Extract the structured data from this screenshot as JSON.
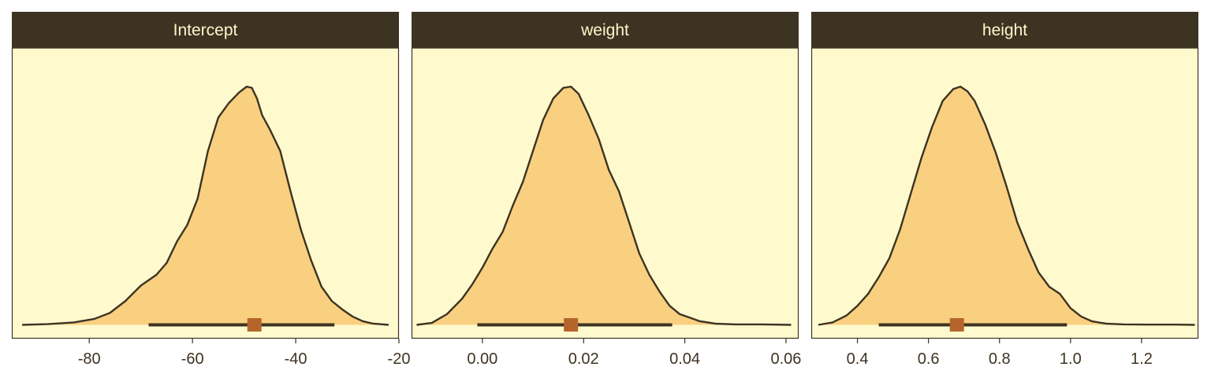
{
  "colors": {
    "strip_fill": "#3d3322",
    "strip_text": "#fdf7cc",
    "panel_bg": "#fffacd",
    "density_fill": "#f9d080",
    "density_line": "#3d3322",
    "interval_line": "#3d3322",
    "point_estimate": "#b5652c",
    "tick_text": "#3d3322"
  },
  "chart_data": [
    {
      "type": "area",
      "facet": "Intercept",
      "xlim": [
        -95,
        -20
      ],
      "x_ticks": [
        -80,
        -60,
        -40,
        -20
      ],
      "x_tick_labels": [
        "-80",
        "-60",
        "-40",
        "-20"
      ],
      "density": {
        "x": [
          -93.0,
          -88.0,
          -83.0,
          -79.0,
          -76.0,
          -73.0,
          -70.0,
          -67.0,
          -65.0,
          -63.0,
          -61.0,
          -59.0,
          -57.0,
          -55.0,
          -53.0,
          -51.0,
          -49.5,
          -48.5,
          -47.5,
          -46.5,
          -45.0,
          -43.0,
          -41.0,
          -39.0,
          -37.0,
          -35.0,
          -33.0,
          -31.0,
          -29.0,
          -27.0,
          -25.0,
          -22.0
        ],
        "y": [
          0.0,
          0.003,
          0.01,
          0.025,
          0.05,
          0.1,
          0.165,
          0.21,
          0.26,
          0.35,
          0.42,
          0.53,
          0.73,
          0.87,
          0.93,
          0.975,
          1.0,
          0.995,
          0.95,
          0.88,
          0.82,
          0.73,
          0.56,
          0.4,
          0.27,
          0.16,
          0.1,
          0.065,
          0.035,
          0.015,
          0.005,
          0.0
        ]
      },
      "interval": [
        -68.5,
        -32.5
      ],
      "point_estimate": -48.0
    },
    {
      "type": "area",
      "facet": "weight",
      "xlim": [
        -0.014,
        0.0625
      ],
      "x_ticks": [
        0.0,
        0.02,
        0.04,
        0.06
      ],
      "x_tick_labels": [
        "0.00",
        "0.02",
        "0.04",
        "0.06"
      ],
      "density": {
        "x": [
          -0.013,
          -0.01,
          -0.007,
          -0.004,
          -0.002,
          0.0,
          0.002,
          0.004,
          0.006,
          0.008,
          0.01,
          0.012,
          0.014,
          0.016,
          0.0175,
          0.019,
          0.021,
          0.023,
          0.025,
          0.027,
          0.029,
          0.031,
          0.033,
          0.035,
          0.037,
          0.039,
          0.041,
          0.043,
          0.046,
          0.05,
          0.055,
          0.061
        ],
        "y": [
          0.0,
          0.008,
          0.045,
          0.11,
          0.17,
          0.24,
          0.32,
          0.39,
          0.5,
          0.6,
          0.73,
          0.86,
          0.95,
          0.995,
          1.0,
          0.97,
          0.88,
          0.78,
          0.65,
          0.56,
          0.43,
          0.3,
          0.21,
          0.14,
          0.08,
          0.045,
          0.03,
          0.015,
          0.005,
          0.002,
          0.002,
          0.0
        ]
      },
      "interval": [
        -0.001,
        0.0375
      ],
      "point_estimate": 0.0175
    },
    {
      "type": "area",
      "facet": "height",
      "xlim": [
        0.27,
        1.36
      ],
      "x_ticks": [
        0.4,
        0.6,
        0.8,
        1.0,
        1.2
      ],
      "x_tick_labels": [
        "0.4",
        "0.6",
        "0.8",
        "1.0",
        "1.2"
      ],
      "density": {
        "x": [
          0.29,
          0.33,
          0.37,
          0.4,
          0.43,
          0.46,
          0.49,
          0.52,
          0.55,
          0.58,
          0.61,
          0.64,
          0.67,
          0.69,
          0.71,
          0.73,
          0.76,
          0.79,
          0.82,
          0.85,
          0.88,
          0.91,
          0.94,
          0.97,
          1.0,
          1.03,
          1.06,
          1.1,
          1.15,
          1.22,
          1.3,
          1.35
        ],
        "y": [
          0.0,
          0.01,
          0.04,
          0.08,
          0.13,
          0.2,
          0.28,
          0.4,
          0.55,
          0.7,
          0.83,
          0.94,
          0.99,
          1.0,
          0.98,
          0.94,
          0.84,
          0.72,
          0.58,
          0.43,
          0.32,
          0.22,
          0.16,
          0.13,
          0.07,
          0.035,
          0.015,
          0.005,
          0.002,
          0.001,
          0.001,
          0.0
        ]
      },
      "interval": [
        0.46,
        0.99
      ],
      "point_estimate": 0.68
    }
  ]
}
